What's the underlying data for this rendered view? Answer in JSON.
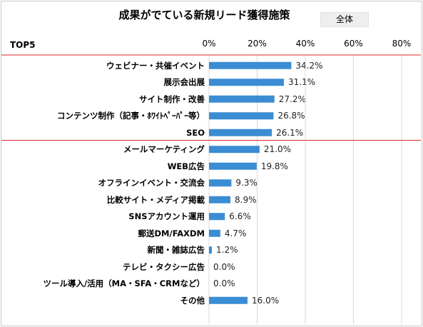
{
  "title": "成果がでている新規リード獲得施策",
  "filter_label": "全体",
  "top_label": "TOP5",
  "colors": {
    "bar": "#3b8dd3",
    "separator": "#d9292d",
    "grid": "#d9d9d9"
  },
  "chart_data": {
    "type": "bar",
    "orientation": "horizontal",
    "title": "成果がでている新規リード獲得施策",
    "xlim": [
      0,
      80
    ],
    "ticks": [
      "0%",
      "20%",
      "40%",
      "60%",
      "80%"
    ],
    "tick_values": [
      0,
      20,
      40,
      60,
      80
    ],
    "categories": [
      "ウェビナー・共催イベント",
      "展示会出展",
      "サイト制作・改善",
      "コンテンツ制作（記事・ﾎﾜｲﾄﾍﾟｰﾊﾟｰ等）",
      "SEO",
      "メールマーケティング",
      "WEB広告",
      "オフラインイベント・交流会",
      "比較サイト・メディア掲載",
      "SNSアカウント運用",
      "郵送DM/FAXDM",
      "新聞・雑誌広告",
      "テレビ・タクシー広告",
      "ツール導入/活用（MA・SFA・CRMなど）",
      "その他"
    ],
    "values": [
      34.2,
      31.1,
      27.2,
      26.8,
      26.1,
      21.0,
      19.8,
      9.3,
      8.9,
      6.6,
      4.7,
      1.2,
      0.0,
      0.0,
      16.0
    ],
    "value_labels": [
      "34.2%",
      "31.1%",
      "27.2%",
      "26.8%",
      "26.1%",
      "21.0%",
      "19.8%",
      "9.3%",
      "8.9%",
      "6.6%",
      "4.7%",
      "1.2%",
      "0.0%",
      "0.0%",
      "16.0%"
    ],
    "grid": true,
    "top_group_size": 5
  }
}
